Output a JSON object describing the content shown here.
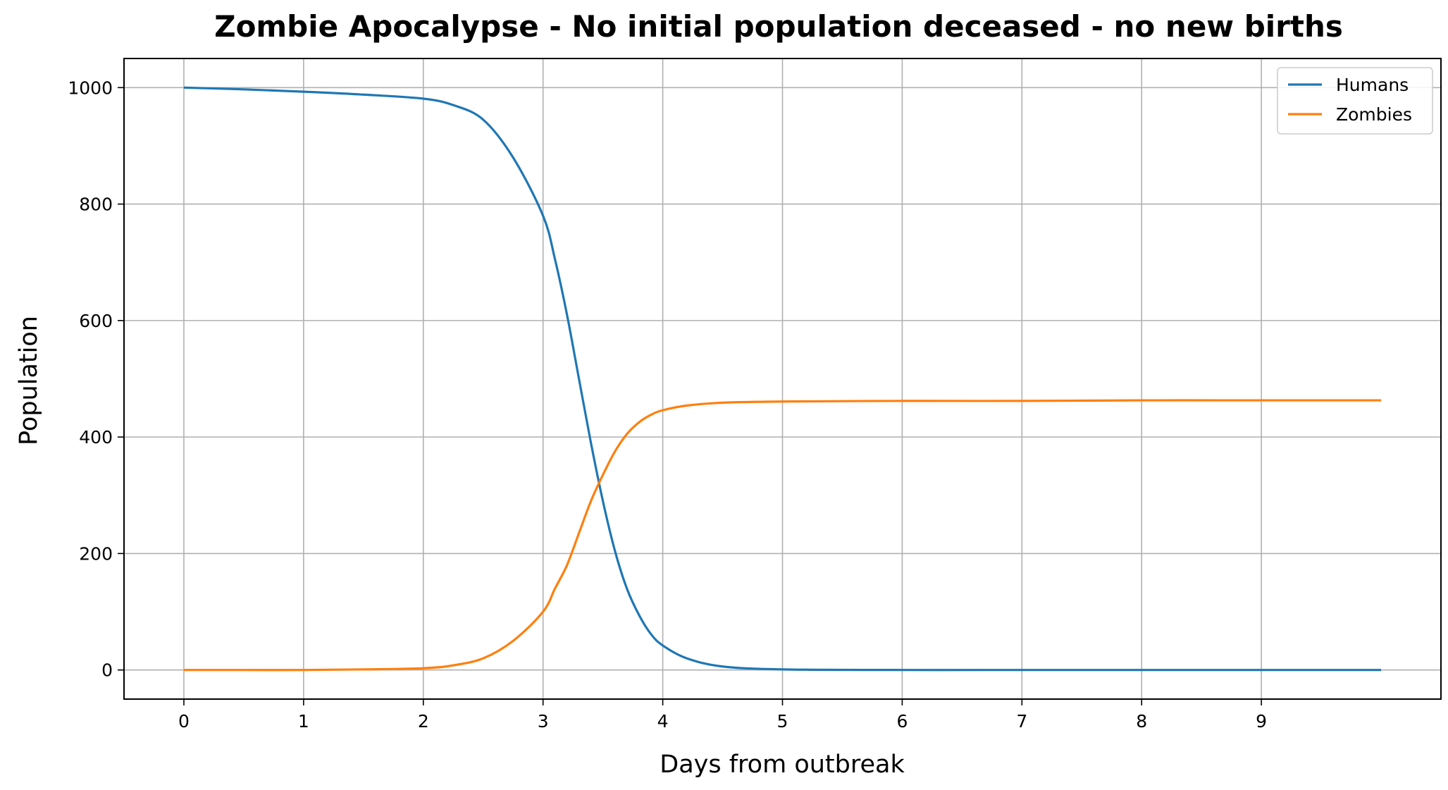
{
  "chart_data": {
    "type": "line",
    "title": "Zombie Apocalypse - No initial population deceased - no new births",
    "xlabel": "Days from outbreak",
    "ylabel": "Population",
    "xlim": [
      -0.5,
      10.5
    ],
    "ylim": [
      -50,
      1050
    ],
    "xticks": [
      0,
      1,
      2,
      3,
      4,
      5,
      6,
      7,
      8,
      9
    ],
    "yticks": [
      0,
      200,
      400,
      600,
      800,
      1000
    ],
    "grid": true,
    "legend_position": "top-right",
    "series": [
      {
        "name": "Humans",
        "color": "#1f77b4",
        "x": [
          0,
          0.5,
          1,
          1.5,
          2,
          2.25,
          2.5,
          2.75,
          3,
          3.1,
          3.2,
          3.3,
          3.4,
          3.5,
          3.6,
          3.7,
          3.8,
          3.9,
          4,
          4.2,
          4.5,
          5,
          6,
          7,
          8,
          9,
          10
        ],
        "y": [
          1000,
          997,
          993,
          988,
          981,
          970,
          945,
          880,
          780,
          705,
          610,
          500,
          390,
          290,
          205,
          140,
          95,
          62,
          42,
          20,
          6,
          1,
          0,
          0,
          0,
          0,
          0
        ]
      },
      {
        "name": "Zombies",
        "color": "#ff7f0e",
        "x": [
          0,
          0.5,
          1,
          1.5,
          2,
          2.25,
          2.5,
          2.75,
          3,
          3.1,
          3.2,
          3.3,
          3.4,
          3.5,
          3.6,
          3.7,
          3.8,
          3.9,
          4,
          4.2,
          4.5,
          5,
          6,
          7,
          8,
          9,
          10
        ],
        "y": [
          0,
          0,
          0,
          1,
          3,
          8,
          20,
          50,
          100,
          140,
          180,
          235,
          290,
          335,
          375,
          405,
          425,
          438,
          446,
          454,
          459,
          461,
          462,
          462,
          463,
          463,
          463
        ]
      }
    ]
  }
}
